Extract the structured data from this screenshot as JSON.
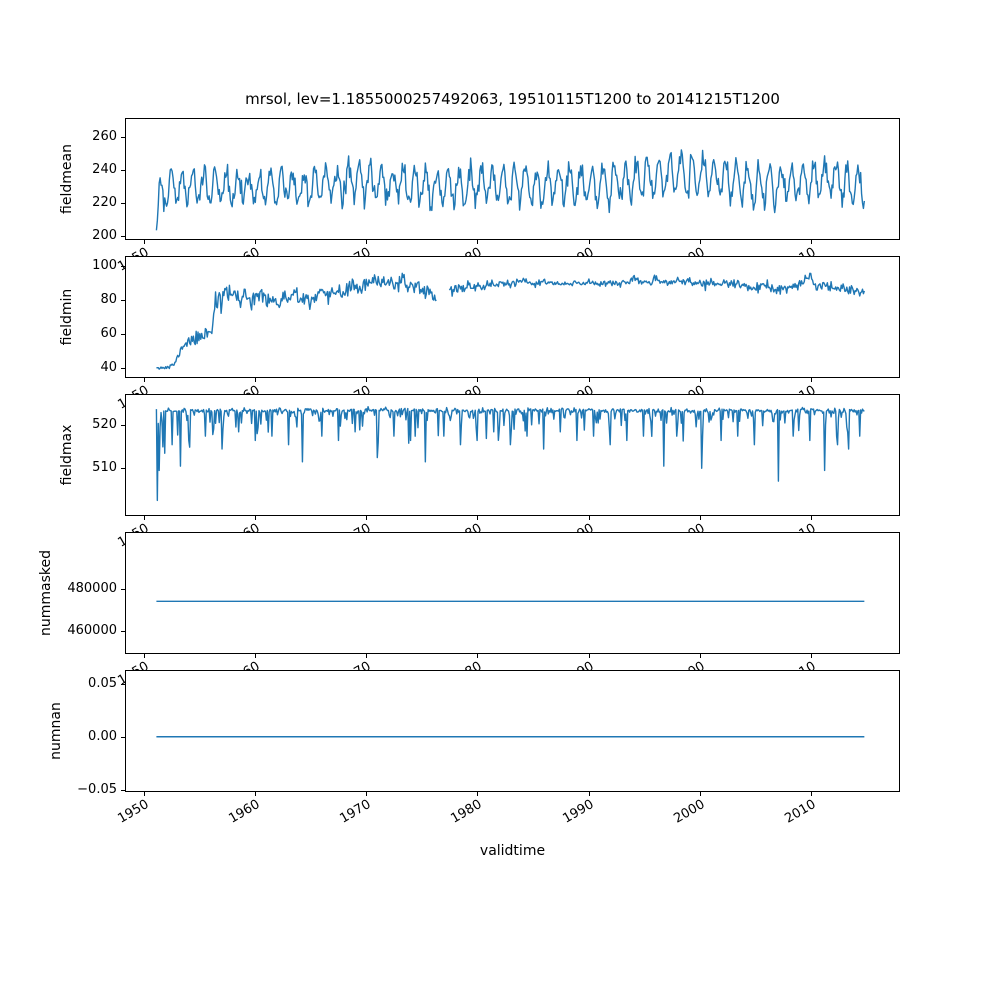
{
  "figure": {
    "title": "mrsol, lev=1.1855000257492063, 19510115T1200 to 20141215T1200",
    "xlabel": "validtime",
    "line_color": "#1f77b4",
    "background": "#ffffff"
  },
  "chart_data": [
    {
      "type": "line",
      "ylabel": "fieldmean",
      "ylim": [
        197.5,
        271.5
      ],
      "yticks": [
        200,
        220,
        240,
        260
      ],
      "ytick_labels": [
        "200",
        "220",
        "240",
        "260"
      ],
      "xlim": [
        1948.3,
        2018.0
      ],
      "xticks": [
        1950,
        1960,
        1970,
        1980,
        1990,
        2000,
        2010
      ],
      "xtick_labels": [
        "1950",
        "1960",
        "1970",
        "1980",
        "1990",
        "2000",
        "2010"
      ],
      "x": {
        "start": 1951.042,
        "end": 2014.958,
        "points_per_year": 12
      },
      "series": {
        "kind": "seasonal",
        "level_anchors": [
          [
            1951.04,
            203
          ],
          [
            1951.3,
            224
          ],
          [
            1952,
            229
          ],
          [
            1955,
            230
          ],
          [
            1958,
            229
          ],
          [
            1961,
            231
          ],
          [
            1964,
            229
          ],
          [
            1967,
            231
          ],
          [
            1969,
            234
          ],
          [
            1971,
            232
          ],
          [
            1974,
            231
          ],
          [
            1977,
            230
          ],
          [
            1980,
            231
          ],
          [
            1983,
            231
          ],
          [
            1986,
            231
          ],
          [
            1989,
            232
          ],
          [
            1992,
            232
          ],
          [
            1995,
            236
          ],
          [
            1997,
            237
          ],
          [
            1999,
            236
          ],
          [
            2001,
            237
          ],
          [
            2003,
            233
          ],
          [
            2005,
            231
          ],
          [
            2007,
            232
          ],
          [
            2009,
            233
          ],
          [
            2011,
            234
          ],
          [
            2013,
            233
          ],
          [
            2014.96,
            230
          ]
        ],
        "amp_anchors": [
          [
            1951.04,
            4
          ],
          [
            1952,
            9
          ],
          [
            1960,
            9.5
          ],
          [
            1993,
            10
          ],
          [
            1996,
            12
          ],
          [
            2002,
            12
          ],
          [
            2006,
            10.5
          ],
          [
            2014.96,
            10.5
          ]
        ],
        "noise_sd": 3.4,
        "seed": 101
      }
    },
    {
      "type": "line",
      "ylabel": "fieldmin",
      "ylim": [
        34,
        106
      ],
      "yticks": [
        40,
        60,
        80,
        100
      ],
      "ytick_labels": [
        "40",
        "60",
        "80",
        "100"
      ],
      "xlim": [
        1948.3,
        2018.0
      ],
      "xticks": [
        1950,
        1960,
        1970,
        1980,
        1990,
        2000,
        2010
      ],
      "xtick_labels": [
        "1950",
        "1960",
        "1970",
        "1980",
        "1990",
        "2000",
        "2010"
      ],
      "x": {
        "start": 1951.042,
        "end": 2014.958,
        "points_per_year": 12
      },
      "series": {
        "kind": "anchored",
        "anchors": [
          [
            1951.04,
            40
          ],
          [
            1951.6,
            39.5
          ],
          [
            1952.3,
            40
          ],
          [
            1952.8,
            43
          ],
          [
            1953.2,
            50
          ],
          [
            1953.6,
            54
          ],
          [
            1954.2,
            56
          ],
          [
            1954.8,
            57
          ],
          [
            1955.3,
            60
          ],
          [
            1955.8,
            62
          ],
          [
            1956.1,
            63
          ],
          [
            1956.35,
            86
          ],
          [
            1956.5,
            70
          ],
          [
            1956.7,
            86
          ],
          [
            1956.9,
            74
          ],
          [
            1957.2,
            86
          ],
          [
            1957.6,
            83
          ],
          [
            1958.1,
            86
          ],
          [
            1958.5,
            77
          ],
          [
            1959,
            84
          ],
          [
            1959.5,
            80
          ],
          [
            1960,
            84
          ],
          [
            1960.5,
            82
          ],
          [
            1961,
            79
          ],
          [
            1961.5,
            83
          ],
          [
            1962,
            76
          ],
          [
            1962.5,
            82
          ],
          [
            1963,
            80
          ],
          [
            1963.5,
            84
          ],
          [
            1964,
            79
          ],
          [
            1964.5,
            83
          ],
          [
            1965,
            77
          ],
          [
            1965.5,
            83
          ],
          [
            1966,
            84
          ],
          [
            1966.5,
            80
          ],
          [
            1967,
            85
          ],
          [
            1967.5,
            87
          ],
          [
            1968,
            83
          ],
          [
            1968.4,
            88
          ],
          [
            1969,
            89
          ],
          [
            1969.5,
            86
          ],
          [
            1970,
            90
          ],
          [
            1971,
            91
          ],
          [
            1972,
            92
          ],
          [
            1972.5,
            89
          ],
          [
            1973,
            91
          ],
          [
            1974,
            88
          ],
          [
            1974.5,
            90
          ],
          [
            1975,
            85
          ],
          [
            1975.5,
            87
          ],
          [
            1976,
            82
          ],
          [
            1976.25,
            80
          ],
          [
            1977.5,
            86
          ],
          [
            1978,
            87
          ],
          [
            1979,
            88
          ],
          [
            1980,
            88.5
          ],
          [
            1981,
            89
          ],
          [
            1982,
            90
          ],
          [
            1983,
            90
          ],
          [
            1984,
            91
          ],
          [
            1985,
            90
          ],
          [
            1986,
            91
          ],
          [
            1987,
            90
          ],
          [
            1988,
            89.5
          ],
          [
            1989,
            90
          ],
          [
            1990,
            91
          ],
          [
            1991,
            90
          ],
          [
            1992,
            91
          ],
          [
            1993,
            90
          ],
          [
            1994,
            92
          ],
          [
            1995,
            91
          ],
          [
            1996,
            91.5
          ],
          [
            1997,
            90.5
          ],
          [
            1998,
            92
          ],
          [
            1999,
            91
          ],
          [
            2000,
            90
          ],
          [
            2001,
            90.5
          ],
          [
            2002,
            90
          ],
          [
            2003,
            89.5
          ],
          [
            2004,
            89
          ],
          [
            2005,
            87.5
          ],
          [
            2006,
            88
          ],
          [
            2007,
            86
          ],
          [
            2008,
            87.5
          ],
          [
            2009,
            88
          ],
          [
            2010.1,
            96
          ],
          [
            2010.3,
            88
          ],
          [
            2011,
            90
          ],
          [
            2012,
            87
          ],
          [
            2013,
            88.5
          ],
          [
            2014,
            86
          ],
          [
            2014.96,
            85
          ]
        ],
        "noise_anchors": [
          [
            1951,
            0.4
          ],
          [
            1953,
            1
          ],
          [
            1956,
            3
          ],
          [
            1958,
            2.5
          ],
          [
            1965,
            2
          ],
          [
            1975,
            2
          ],
          [
            1985,
            1
          ],
          [
            1995,
            1
          ],
          [
            2005,
            1.5
          ],
          [
            2014.96,
            1.5
          ]
        ],
        "gaps": [
          [
            1976.35,
            1977.45
          ]
        ],
        "seed": 11
      }
    },
    {
      "type": "line",
      "ylabel": "fieldmax",
      "ylim": [
        499,
        527
      ],
      "yticks": [
        510,
        520
      ],
      "ytick_labels": [
        "510",
        "520"
      ],
      "xlim": [
        1948.3,
        2018.0
      ],
      "xticks": [
        1950,
        1960,
        1970,
        1980,
        1990,
        2000,
        2010
      ],
      "xtick_labels": [
        "1950",
        "1960",
        "1970",
        "1980",
        "1990",
        "2000",
        "2010"
      ],
      "x": {
        "start": 1951.042,
        "end": 2014.958,
        "points_per_year": 12
      },
      "series": {
        "kind": "spiky",
        "base": 523.4,
        "base_noise": 0.25,
        "spike_prob": 0.3,
        "spike_scale": 1.8,
        "spike_max": 9,
        "seed": 77,
        "big_spikes": [
          [
            1951.12,
            21
          ],
          [
            1951.3,
            14
          ],
          [
            1951.8,
            10
          ],
          [
            1952.5,
            8
          ],
          [
            1953.2,
            13
          ],
          [
            1954,
            7
          ],
          [
            1955.5,
            6
          ],
          [
            1957,
            9
          ],
          [
            1958.5,
            5
          ],
          [
            1960,
            7
          ],
          [
            1961.5,
            6
          ],
          [
            1963,
            8
          ],
          [
            1964.2,
            12
          ],
          [
            1966,
            6
          ],
          [
            1967.5,
            7
          ],
          [
            1969,
            5
          ],
          [
            1971,
            11
          ],
          [
            1972.5,
            6
          ],
          [
            1974,
            7
          ],
          [
            1975.3,
            12
          ],
          [
            1977,
            6
          ],
          [
            1978.5,
            8
          ],
          [
            1980,
            7
          ],
          [
            1981.5,
            5
          ],
          [
            1983,
            8
          ],
          [
            1984.5,
            6
          ],
          [
            1986,
            9
          ],
          [
            1987.5,
            5
          ],
          [
            1989,
            7
          ],
          [
            1990.5,
            6
          ],
          [
            1992,
            8
          ],
          [
            1993.5,
            7
          ],
          [
            1995,
            6
          ],
          [
            1996.8,
            13
          ],
          [
            1998,
            6
          ],
          [
            2000.2,
            13.5
          ],
          [
            2002,
            7
          ],
          [
            2003.5,
            6
          ],
          [
            2005,
            8
          ],
          [
            2007.1,
            16.5
          ],
          [
            2008.5,
            6
          ],
          [
            2010,
            7
          ],
          [
            2011.3,
            14
          ],
          [
            2012.5,
            8
          ],
          [
            2013.5,
            9
          ],
          [
            2014.5,
            6
          ]
        ]
      }
    },
    {
      "type": "line",
      "ylabel": "nummasked",
      "ylim": [
        449000,
        507000
      ],
      "yticks": [
        460000,
        480000
      ],
      "ytick_labels": [
        "460000",
        "480000"
      ],
      "xlim": [
        1948.3,
        2018.0
      ],
      "xticks": [
        1950,
        1960,
        1970,
        1980,
        1990,
        2000,
        2010
      ],
      "xtick_labels": [
        "1950",
        "1960",
        "1970",
        "1980",
        "1990",
        "2000",
        "2010"
      ],
      "x": {
        "start": 1951.042,
        "end": 2014.958,
        "points_per_year": 12
      },
      "series": {
        "kind": "constant",
        "value": 474000,
        "seed": 5
      }
    },
    {
      "type": "line",
      "ylabel": "numnan",
      "ylim": [
        -0.052,
        0.063
      ],
      "yticks": [
        -0.05,
        0.0,
        0.05
      ],
      "ytick_labels": [
        "−0.05",
        "0.00",
        "0.05"
      ],
      "xlim": [
        1948.3,
        2018.0
      ],
      "xticks": [
        1950,
        1960,
        1970,
        1980,
        1990,
        2000,
        2010
      ],
      "xtick_labels": [
        "1950",
        "1960",
        "1970",
        "1980",
        "1990",
        "2000",
        "2010"
      ],
      "x": {
        "start": 1951.042,
        "end": 2014.958,
        "points_per_year": 12
      },
      "series": {
        "kind": "constant",
        "value": 0,
        "seed": 6
      }
    }
  ]
}
